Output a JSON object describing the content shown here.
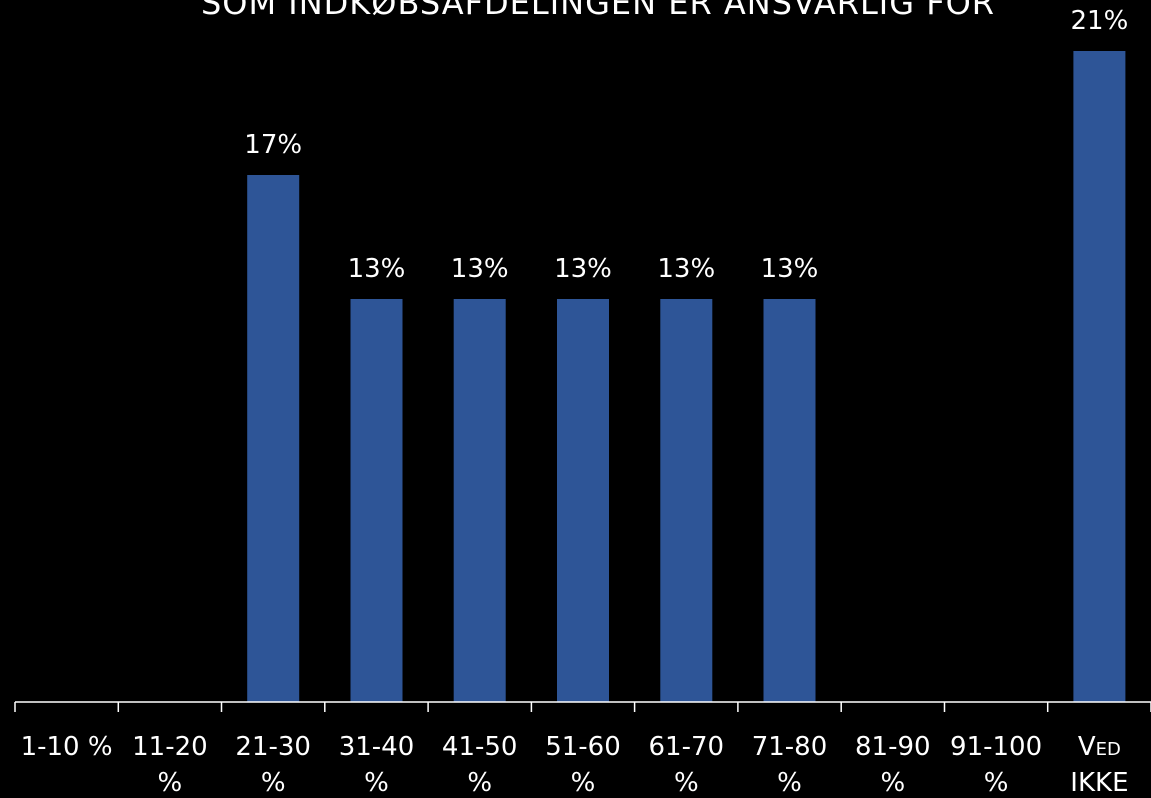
{
  "colors": {
    "background": "#000000",
    "bar": "#2e5597",
    "axis": "#ffffff",
    "text": "#ffffff"
  },
  "chart_data": {
    "type": "bar",
    "title": "SOM INDKØBSAFDELINGEN ER ANSVARLIG FOR",
    "categories": [
      [
        "1-10 %"
      ],
      [
        "11-20",
        "%"
      ],
      [
        "21-30",
        "%"
      ],
      [
        "31-40",
        "%"
      ],
      [
        "41-50",
        "%"
      ],
      [
        "51-60",
        "%"
      ],
      [
        "61-70",
        "%"
      ],
      [
        "71-80",
        "%"
      ],
      [
        "81-90",
        "%"
      ],
      [
        "91-100",
        "%"
      ],
      [
        "VED",
        "IKKE"
      ]
    ],
    "values": [
      0,
      0,
      17,
      13,
      13,
      13,
      13,
      13,
      0,
      0,
      21
    ],
    "data_labels": [
      "",
      "",
      "17%",
      "13%",
      "13%",
      "13%",
      "13%",
      "13%",
      "",
      "",
      "21%"
    ],
    "ylim": [
      0,
      21
    ],
    "grid": false,
    "legend": "none"
  }
}
